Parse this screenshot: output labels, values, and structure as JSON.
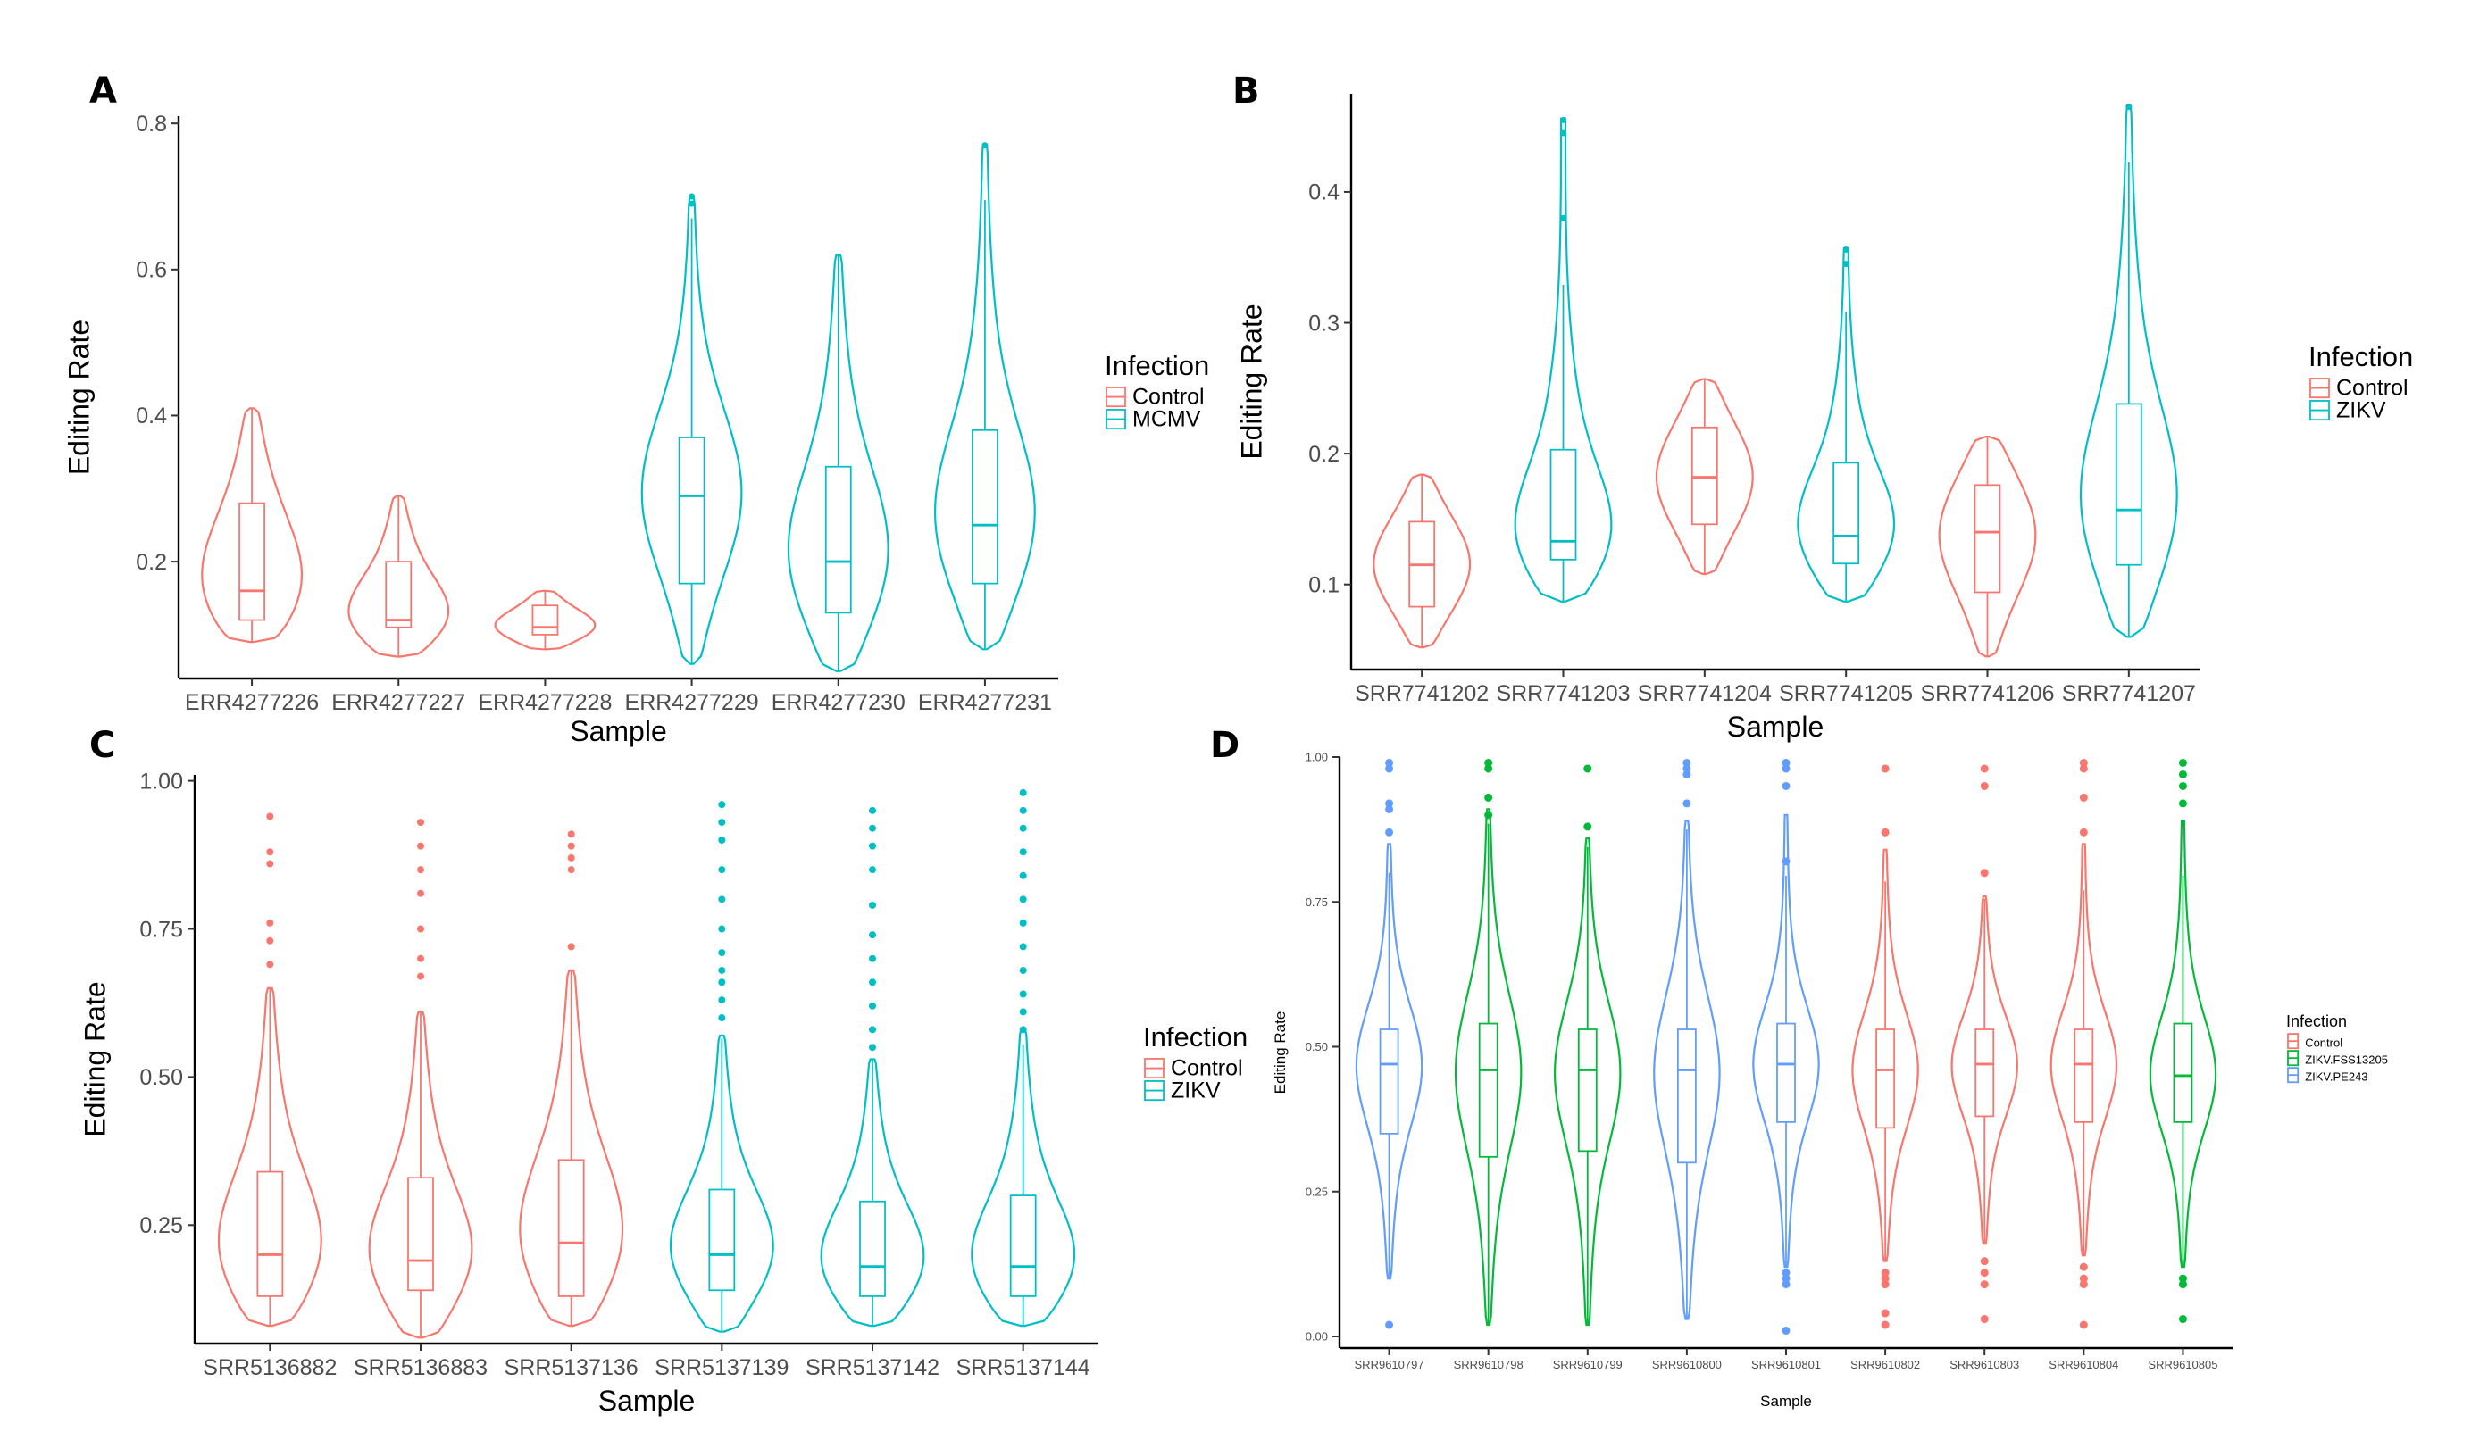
{
  "colors": {
    "Control": "#F8766D",
    "MCMV": "#00BFC4",
    "ZIKV": "#00BFC4",
    "ZIKV.FSS13205": "#00BA38",
    "ZIKV.PE243": "#619CFF"
  },
  "chart_data": [
    {
      "panel": "A",
      "type": "violin",
      "title": "",
      "xlabel": "Sample",
      "ylabel": "Editing Rate",
      "ylim": [
        0.04,
        0.81
      ],
      "yticks": [
        0.2,
        0.4,
        0.6,
        0.8
      ],
      "ytick_labels": [
        "0.2",
        "0.4",
        "0.6",
        "0.8"
      ],
      "legend": {
        "title": "Infection",
        "entries": [
          "Control",
          "MCMV"
        ],
        "position": "right"
      },
      "categories": [
        "ERR4277226",
        "ERR4277227",
        "ERR4277228",
        "ERR4277229",
        "ERR4277230",
        "ERR4277231"
      ],
      "groups": [
        "Control",
        "Control",
        "Control",
        "MCMV",
        "MCMV",
        "MCMV"
      ],
      "min": [
        0.09,
        0.07,
        0.08,
        0.06,
        0.05,
        0.08
      ],
      "max": [
        0.41,
        0.29,
        0.16,
        0.7,
        0.62,
        0.77
      ],
      "q1": [
        0.12,
        0.11,
        0.1,
        0.17,
        0.13,
        0.17
      ],
      "median": [
        0.16,
        0.12,
        0.11,
        0.29,
        0.2,
        0.25
      ],
      "q3": [
        0.28,
        0.2,
        0.14,
        0.37,
        0.33,
        0.38
      ],
      "outliers": [
        [],
        [],
        [],
        [
          0.69,
          0.7
        ],
        [],
        [
          0.77
        ]
      ]
    },
    {
      "panel": "B",
      "type": "violin",
      "title": "",
      "xlabel": "Sample",
      "ylabel": "Editing Rate",
      "ylim": [
        0.035,
        0.475
      ],
      "yticks": [
        0.1,
        0.2,
        0.3,
        0.4
      ],
      "ytick_labels": [
        "0.1",
        "0.2",
        "0.3",
        "0.4"
      ],
      "legend": {
        "title": "Infection",
        "entries": [
          "Control",
          "ZIKV"
        ],
        "position": "right"
      },
      "categories": [
        "SRR7741202",
        "SRR7741203",
        "SRR7741204",
        "SRR7741205",
        "SRR7741206",
        "SRR7741207"
      ],
      "groups": [
        "Control",
        "ZIKV",
        "Control",
        "ZIKV",
        "Control",
        "ZIKV"
      ],
      "min": [
        0.052,
        0.087,
        0.108,
        0.087,
        0.045,
        0.06
      ],
      "max": [
        0.184,
        0.456,
        0.257,
        0.357,
        0.213,
        0.465
      ],
      "q1": [
        0.083,
        0.119,
        0.146,
        0.116,
        0.094,
        0.115
      ],
      "median": [
        0.115,
        0.133,
        0.182,
        0.137,
        0.14,
        0.157
      ],
      "q3": [
        0.148,
        0.203,
        0.22,
        0.193,
        0.176,
        0.238
      ],
      "outliers": [
        [],
        [
          0.38,
          0.445,
          0.455
        ],
        [],
        [
          0.345,
          0.356
        ],
        [],
        [
          0.465
        ]
      ]
    },
    {
      "panel": "C",
      "type": "violin",
      "title": "",
      "xlabel": "Sample",
      "ylabel": "Editing Rate",
      "ylim": [
        0.05,
        1.01
      ],
      "yticks": [
        0.25,
        0.5,
        0.75,
        1.0
      ],
      "ytick_labels": [
        "0.25",
        "0.50",
        "0.75",
        "1.00"
      ],
      "legend": {
        "title": "Infection",
        "entries": [
          "Control",
          "ZIKV"
        ],
        "position": "right"
      },
      "categories": [
        "SRR5136882",
        "SRR5136883",
        "SRR5137136",
        "SRR5137139",
        "SRR5137142",
        "SRR5137144"
      ],
      "groups": [
        "Control",
        "Control",
        "Control",
        "ZIKV",
        "ZIKV",
        "ZIKV"
      ],
      "min": [
        0.08,
        0.06,
        0.08,
        0.07,
        0.08,
        0.08
      ],
      "max": [
        0.65,
        0.61,
        0.68,
        0.57,
        0.53,
        0.58
      ],
      "q1": [
        0.13,
        0.14,
        0.13,
        0.14,
        0.13,
        0.13
      ],
      "median": [
        0.2,
        0.19,
        0.22,
        0.2,
        0.18,
        0.18
      ],
      "q3": [
        0.34,
        0.33,
        0.36,
        0.31,
        0.29,
        0.3
      ],
      "outliers": [
        [
          0.69,
          0.73,
          0.76,
          0.86,
          0.88,
          0.94
        ],
        [
          0.67,
          0.7,
          0.75,
          0.81,
          0.85,
          0.89,
          0.93
        ],
        [
          0.72,
          0.85,
          0.87,
          0.89,
          0.91
        ],
        [
          0.6,
          0.63,
          0.66,
          0.68,
          0.71,
          0.75,
          0.8,
          0.85,
          0.9,
          0.93,
          0.96
        ],
        [
          0.55,
          0.58,
          0.62,
          0.66,
          0.7,
          0.74,
          0.79,
          0.85,
          0.89,
          0.92,
          0.95
        ],
        [
          0.58,
          0.61,
          0.64,
          0.68,
          0.72,
          0.76,
          0.8,
          0.84,
          0.88,
          0.92,
          0.95,
          0.98
        ]
      ]
    },
    {
      "panel": "D",
      "type": "violin",
      "title": "",
      "xlabel": "Sample",
      "ylabel": "Editing Rate",
      "ylim": [
        -0.02,
        1.0
      ],
      "yticks": [
        0.0,
        0.25,
        0.5,
        0.75,
        1.0
      ],
      "ytick_labels": [
        "0.00",
        "0.25",
        "0.50",
        "0.75",
        "1.00"
      ],
      "legend": {
        "title": "Infection",
        "entries": [
          "Control",
          "ZIKV.FSS13205",
          "ZIKV.PE243"
        ],
        "position": "right"
      },
      "categories": [
        "SRR9610797",
        "SRR9610798",
        "SRR9610799",
        "SRR9610800",
        "SRR9610801",
        "SRR9610802",
        "SRR9610803",
        "SRR9610804",
        "SRR9610805"
      ],
      "groups": [
        "ZIKV.PE243",
        "ZIKV.FSS13205",
        "ZIKV.FSS13205",
        "ZIKV.PE243",
        "ZIKV.PE243",
        "Control",
        "Control",
        "Control",
        "ZIKV.FSS13205"
      ],
      "min": [
        0.1,
        0.02,
        0.02,
        0.03,
        0.12,
        0.13,
        0.16,
        0.14,
        0.12
      ],
      "max": [
        0.85,
        0.91,
        0.86,
        0.89,
        0.9,
        0.84,
        0.76,
        0.85,
        0.89
      ],
      "q1": [
        0.35,
        0.31,
        0.32,
        0.3,
        0.37,
        0.36,
        0.38,
        0.37,
        0.37
      ],
      "median": [
        0.47,
        0.46,
        0.46,
        0.46,
        0.47,
        0.46,
        0.47,
        0.47,
        0.45
      ],
      "q3": [
        0.53,
        0.54,
        0.53,
        0.53,
        0.54,
        0.53,
        0.53,
        0.53,
        0.54
      ],
      "outliers": [
        [
          0.02,
          0.87,
          0.91,
          0.92,
          0.98,
          0.99
        ],
        [
          0.9,
          0.93,
          0.98,
          0.99
        ],
        [
          0.88,
          0.98
        ],
        [
          0.92,
          0.97,
          0.98,
          0.99
        ],
        [
          0.01,
          0.09,
          0.1,
          0.11,
          0.82,
          0.95,
          0.98,
          0.99
        ],
        [
          0.02,
          0.04,
          0.09,
          0.1,
          0.11,
          0.87,
          0.98
        ],
        [
          0.03,
          0.09,
          0.11,
          0.13,
          0.8,
          0.95,
          0.98
        ],
        [
          0.02,
          0.09,
          0.1,
          0.12,
          0.87,
          0.93,
          0.98,
          0.99
        ],
        [
          0.03,
          0.09,
          0.1,
          0.92,
          0.95,
          0.97,
          0.99
        ]
      ]
    }
  ]
}
